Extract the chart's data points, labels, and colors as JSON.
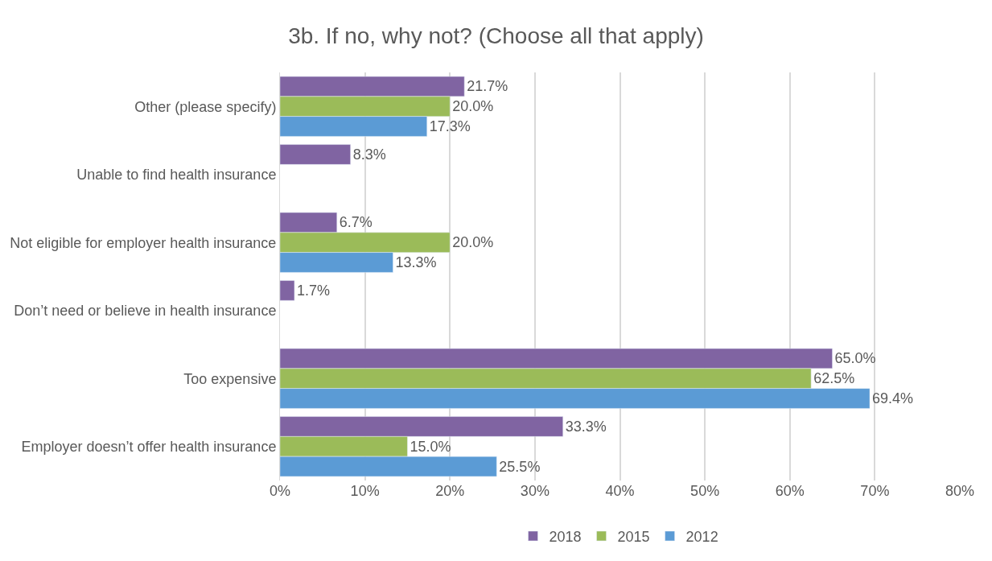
{
  "chart_data": {
    "type": "bar",
    "orientation": "horizontal",
    "title": "3b. If no, why not? (Choose all that apply)",
    "categories": [
      "Other (please specify)",
      "Unable to find health insurance",
      "Not eligible for employer health insurance",
      "Don’t need or believe in health insurance",
      "Too expensive",
      "Employer doesn’t offer health insurance"
    ],
    "series": [
      {
        "name": "2018",
        "color": "#8064a2",
        "values": [
          21.7,
          8.3,
          6.7,
          1.7,
          65.0,
          33.3
        ],
        "value_labels": [
          "21.7%",
          "8.3%",
          "6.7%",
          "1.7%",
          "65.0%",
          "33.3%"
        ]
      },
      {
        "name": "2015",
        "color": "#9bbb59",
        "values": [
          20.0,
          null,
          20.0,
          null,
          62.5,
          15.0
        ],
        "value_labels": [
          "20.0%",
          null,
          "20.0%",
          null,
          "62.5%",
          "15.0%"
        ]
      },
      {
        "name": "2012",
        "color": "#5b9bd5",
        "values": [
          17.3,
          null,
          13.3,
          null,
          69.4,
          25.5
        ],
        "value_labels": [
          "17.3%",
          null,
          "13.3%",
          null,
          "69.4%",
          "25.5%"
        ]
      }
    ],
    "xlim": [
      0,
      80
    ],
    "xticks": [
      {
        "value": 0,
        "label": "0%"
      },
      {
        "value": 10,
        "label": "10%"
      },
      {
        "value": 20,
        "label": "20%"
      },
      {
        "value": 30,
        "label": "30%"
      },
      {
        "value": 40,
        "label": "40%"
      },
      {
        "value": 50,
        "label": "50%"
      },
      {
        "value": 60,
        "label": "60%"
      },
      {
        "value": 70,
        "label": "70%"
      },
      {
        "value": 80,
        "label": "80%"
      }
    ],
    "grid": "x",
    "legend": "bottom"
  }
}
